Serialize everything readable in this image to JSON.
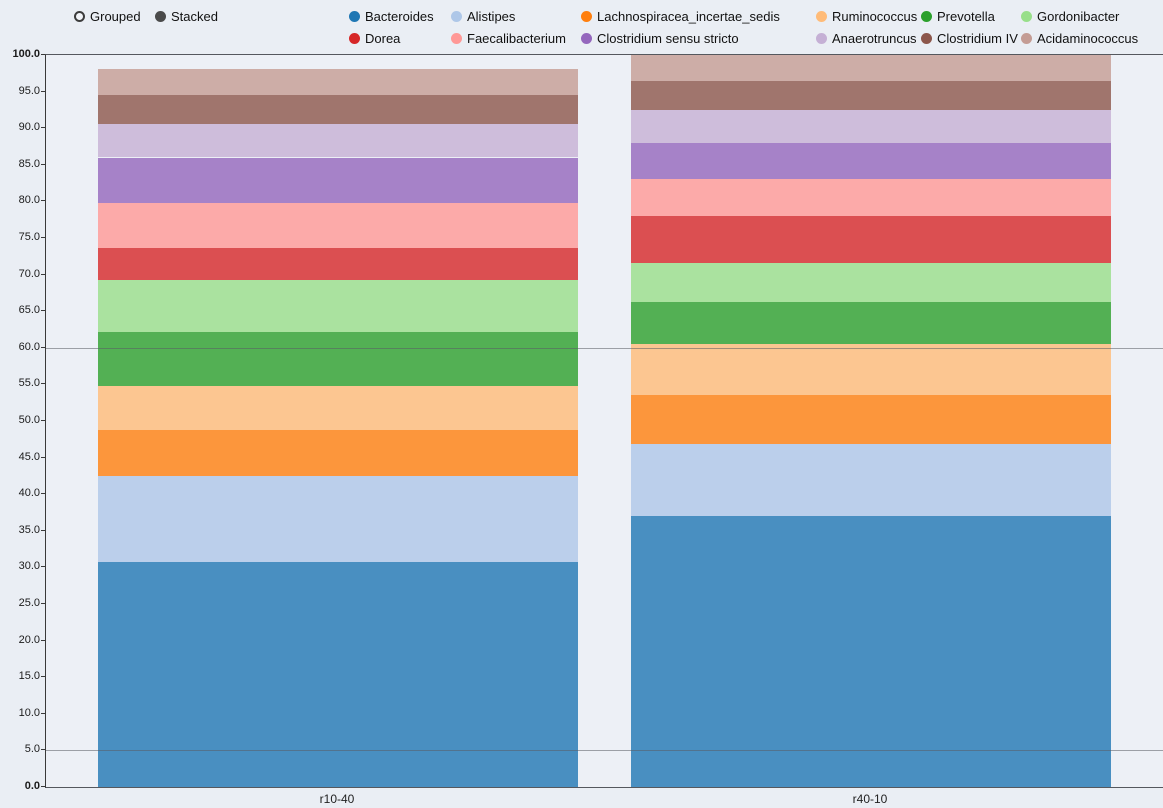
{
  "controls": {
    "grouped_label": "Grouped",
    "stacked_label": "Stacked",
    "selected_mode": "Stacked"
  },
  "chart_data": {
    "type": "bar",
    "stacked": true,
    "title": "",
    "xlabel": "",
    "ylabel": "",
    "categories": [
      "r10-40",
      "r40-10"
    ],
    "series": [
      {
        "name": "Bacteroides",
        "color": "#1f77b4",
        "values": [
          30.8,
          37.0
        ]
      },
      {
        "name": "Alistipes",
        "color": "#aec7e8",
        "values": [
          11.7,
          9.8
        ]
      },
      {
        "name": "Lachnospiracea_incertae_sedis",
        "color": "#ff7f0e",
        "values": [
          6.3,
          6.7
        ]
      },
      {
        "name": "Ruminococcus",
        "color": "#ffbb78",
        "values": [
          6.0,
          7.0
        ]
      },
      {
        "name": "Prevotella",
        "color": "#2ca02c",
        "values": [
          7.3,
          5.8
        ]
      },
      {
        "name": "Gordonibacter",
        "color": "#98df8a",
        "values": [
          7.2,
          5.3
        ]
      },
      {
        "name": "Dorea",
        "color": "#d62728",
        "values": [
          4.3,
          6.4
        ]
      },
      {
        "name": "Faecalibacterium",
        "color": "#ff9896",
        "values": [
          6.2,
          5.0
        ]
      },
      {
        "name": "Clostridium sensu stricto",
        "color": "#9467bd",
        "values": [
          6.2,
          5.0
        ]
      },
      {
        "name": "Anaerotruncus",
        "color": "#c5b0d5",
        "values": [
          4.6,
          4.5
        ]
      },
      {
        "name": "Clostridium IV",
        "color": "#8c564b",
        "values": [
          4.0,
          4.0
        ]
      },
      {
        "name": "Acidaminococcus",
        "color": "#c49c94",
        "values": [
          3.5,
          3.5
        ]
      }
    ],
    "ylim": [
      0,
      100
    ],
    "ytick_labels": [
      "100.0",
      "95.0",
      "90.0",
      "85.0",
      "80.0",
      "75.0",
      "70.0",
      "65.0",
      "60.0",
      "55.0",
      "50.0",
      "45.0",
      "40.0",
      "35.0",
      "30.0",
      "25.0",
      "20.0",
      "15.0",
      "10.0",
      "5.0",
      "0.0"
    ],
    "reference_lines": [
      60,
      5
    ],
    "bar_opacity": 0.8,
    "legend_position": "top",
    "grid": false
  }
}
